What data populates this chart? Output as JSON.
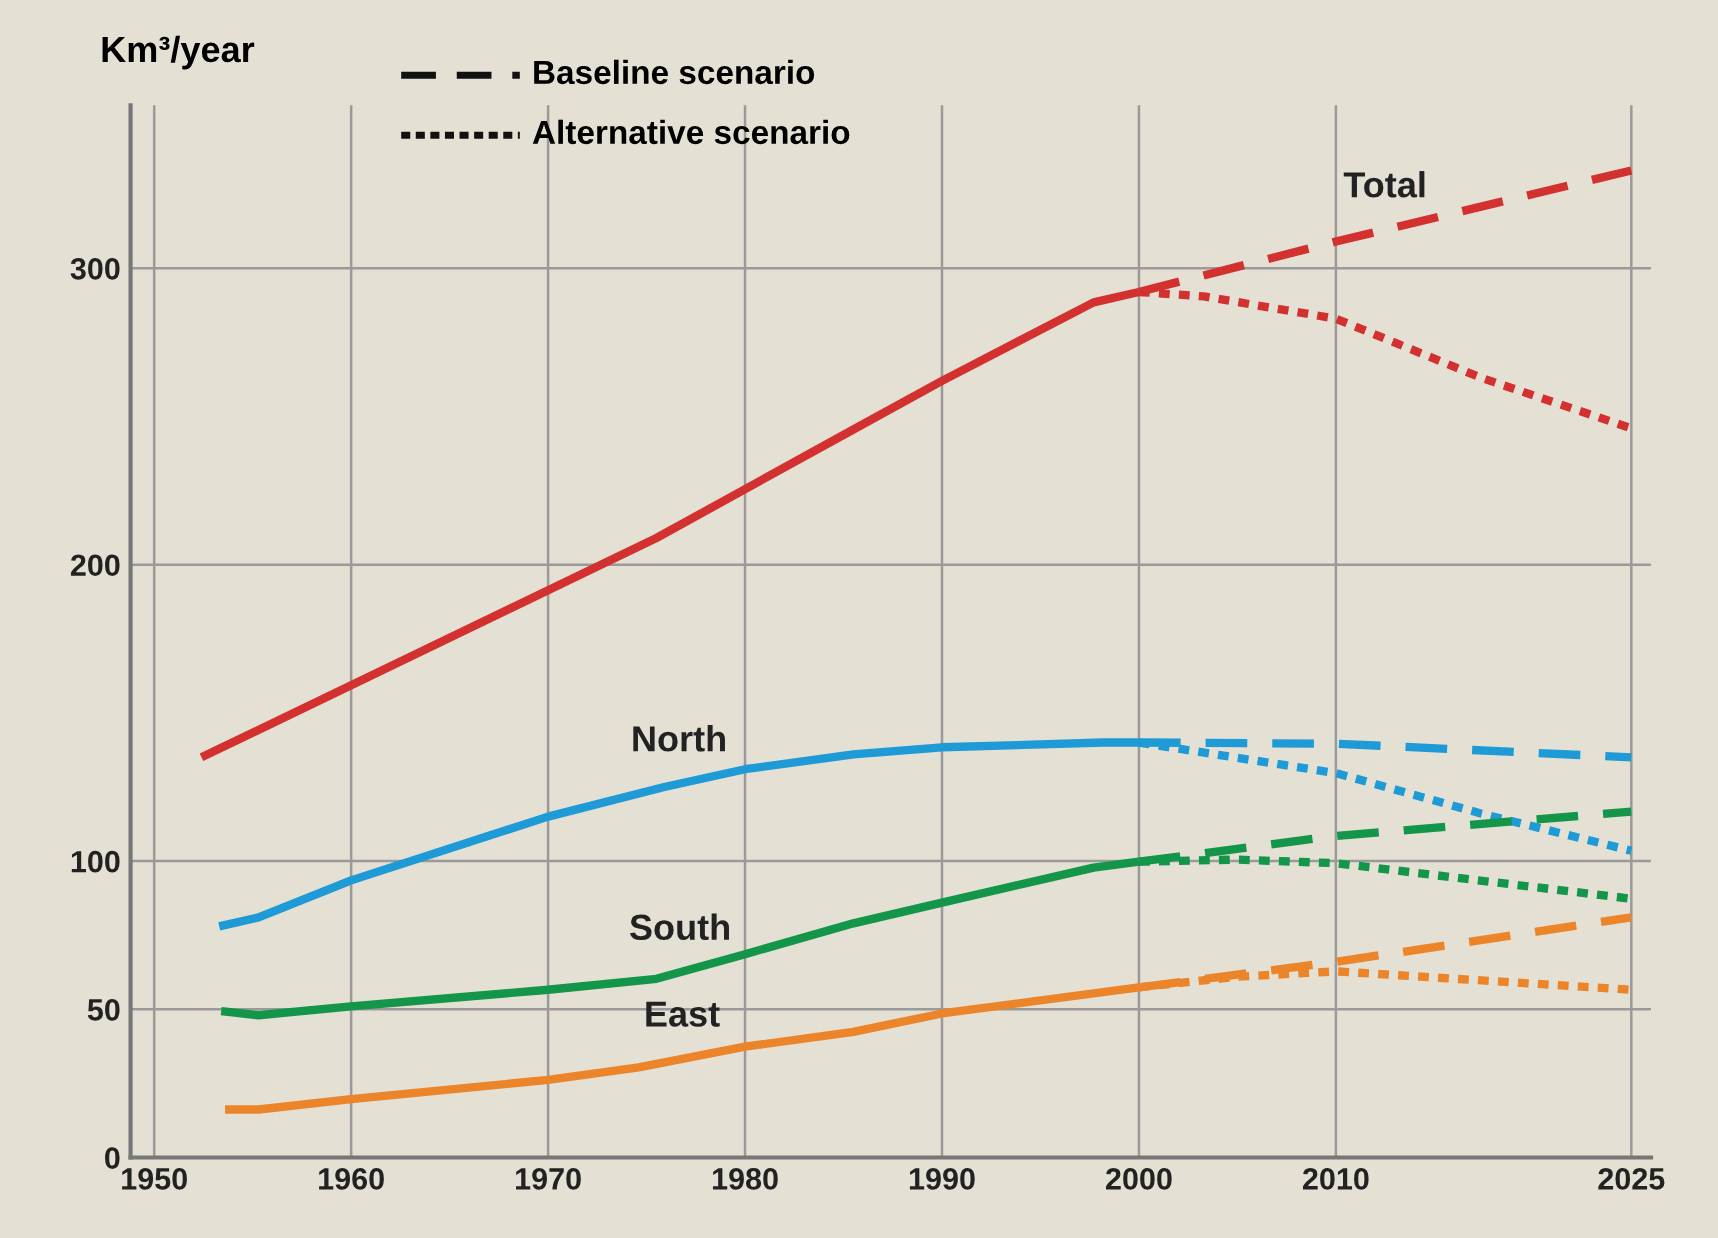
{
  "chart_data": {
    "type": "line",
    "ylabel": "Km³/year",
    "xlim": [
      1948.8,
      2026
    ],
    "xticks": [
      1950,
      1960,
      1970,
      1980,
      1990,
      2000,
      2010,
      2025
    ],
    "ylim": [
      0,
      355
    ],
    "yticks": [
      0,
      50,
      100,
      200,
      300
    ],
    "grid": true,
    "marker": "none",
    "annotations": [
      "Baseline scenario",
      "Alternative scenario"
    ],
    "series": [
      {
        "color": "#d3312f",
        "line_style": "solid",
        "x": [
          1952.4,
          1975.5,
          1985.5,
          1990,
          1997.7,
          2000
        ],
        "values": [
          135,
          209,
          245.6,
          262,
          288.5,
          292
        ]
      },
      {
        "name": "Total",
        "color": "#d3312f",
        "line_style": "dashed",
        "x": [
          2000,
          2010,
          2025
        ],
        "values": [
          292,
          309,
          333
        ]
      },
      {
        "color": "#d3312f",
        "line_style": "dotted",
        "x": [
          2000,
          2003.3,
          2010,
          2017.4,
          2025
        ],
        "values": [
          292,
          290.5,
          283,
          263,
          246
        ]
      },
      {
        "name": "North",
        "color": "#1e9ad6",
        "line_style": "solid",
        "x": [
          1953.3,
          1955.3,
          1960,
          1970,
          1975.9,
          1980,
          1985.5,
          1990,
          1998.2,
          2000
        ],
        "values": [
          78,
          81,
          93.5,
          115,
          125,
          131,
          136,
          138.4,
          140,
          140
        ]
      },
      {
        "color": "#1e9ad6",
        "line_style": "dashed",
        "x": [
          2000,
          2010,
          2025
        ],
        "values": [
          140,
          139.6,
          135
        ]
      },
      {
        "color": "#1e9ad6",
        "line_style": "dotted",
        "x": [
          2000,
          2010,
          2017.4,
          2025
        ],
        "values": [
          140,
          129.7,
          116,
          103.5
        ]
      },
      {
        "name": "South",
        "color": "#13954a",
        "line_style": "solid",
        "x": [
          1953.4,
          1955.3,
          1960,
          1970,
          1975.5,
          1980,
          1985.5,
          1990,
          1997.7,
          2000
        ],
        "values": [
          49.4,
          48,
          51,
          56.6,
          60.3,
          68.6,
          79,
          86,
          97.8,
          99.8
        ]
      },
      {
        "color": "#13954a",
        "line_style": "dashed",
        "x": [
          2000,
          2010,
          2025
        ],
        "values": [
          99.8,
          108.5,
          116.7
        ]
      },
      {
        "color": "#13954a",
        "line_style": "dotted",
        "x": [
          2000,
          2005,
          2010,
          2025
        ],
        "values": [
          99.8,
          100.5,
          99.3,
          87.3
        ]
      },
      {
        "name": "East",
        "color": "#ec852a",
        "line_style": "solid",
        "x": [
          1953.6,
          1955.3,
          1960,
          1970,
          1974.6,
          1980,
          1985.5,
          1990,
          2000
        ],
        "values": [
          16.2,
          16.2,
          19.7,
          26.2,
          30.4,
          37.4,
          42.4,
          48.6,
          57.4
        ]
      },
      {
        "color": "#ec852a",
        "line_style": "dashed",
        "x": [
          2000,
          2010,
          2025
        ],
        "values": [
          57.4,
          66,
          81
        ]
      },
      {
        "color": "#ec852a",
        "line_style": "dotted",
        "x": [
          2000,
          2005,
          2010,
          2025
        ],
        "values": [
          57.4,
          61,
          62.8,
          56.6
        ]
      }
    ]
  }
}
